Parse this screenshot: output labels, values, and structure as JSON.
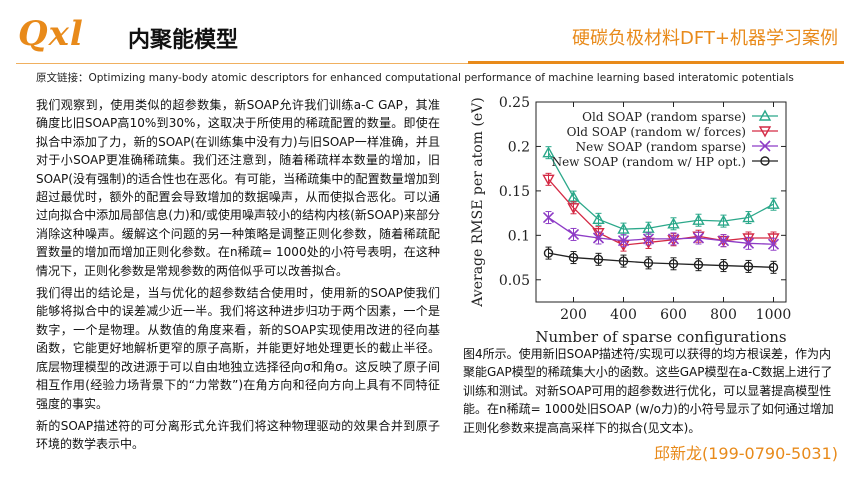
{
  "header": {
    "logo_text": "Qxl",
    "title": "内聚能模型",
    "brand": "硬碳负极材料DFT+机器学习案例",
    "source": "原文链接：Optimizing many-body atomic descriptors for enhanced computational performance of machine learning based interatomic potentials"
  },
  "body": {
    "p1": "我们观察到，使用类似的超参数集，新SOAP允许我们训练a-C GAP，其准确度比旧SOAP高10%到30%，这取决于所使用的稀疏配置的数量。即使在拟合中添加了力，新的SOAP(在训练集中没有力)与旧SOAP一样准确，并且对于小SOAP更准确稀疏集。我们还注意到，随着稀疏样本数量的增加，旧SOAP(没有强制)的适合性也在恶化。有可能，当稀疏集中的配置数量增加到超过最优时，额外的配置会导致增加的数据噪声，从而使拟合恶化。可以通过向拟合中添加局部信息(力)和/或使用噪声较小的结构内核(新SOAP)来部分消除这种噪声。缓解这个问题的另一种策略是调整正则化参数，随着稀疏配置数量的增加而增加正则化参数。在n稀疏= 1000处的小符号表明，在这种情况下，正则化参数是常规参数的两倍似乎可以改善拟合。",
    "p2": "我们得出的结论是，当与优化的超参数结合使用时，使用新的SOAP使我们能够将拟合中的误差减少近一半。我们将这种进步归功于两个因素，一个是数字，一个是物理。从数值的角度来看，新的SOAP实现使用改进的径向基函数，它能更好地解析更窄的原子高斯，并能更好地处理更长的截止半径。底层物理模型的改进源于可以自由地独立选择径向σ和角σ。这反映了原子间相互作用(经验力场背景下的“力常数”)在角方向和径向方向上具有不同特征强度的事实。",
    "p3": "新的SOAP描述符的可分离形式允许我们将这种物理驱动的效果合并到原子环境的数学表示中。"
  },
  "caption": "图4所示。使用新旧SOAP描述符/实现可以获得的均方根误差，作为内聚能GAP模型的稀疏集大小的函数。这些GAP模型在a-C数据上进行了训练和测试。对新SOAP可用的超参数进行优化，可以显著提高模型性能。在n稀疏= 1000处旧SOAP (w/o力)的小符号显示了如何通过增加正则化参数来提高高采样下的拟合(见文本)。",
  "contact": "邱新龙(199-0790-5031)",
  "chart_data": {
    "type": "line",
    "xlabel": "Number of sparse configurations",
    "ylabel": "Average RMSE per atom (eV)",
    "xlim": [
      50,
      1050
    ],
    "ylim": [
      0.025,
      0.25
    ],
    "xticks": [
      200,
      400,
      600,
      800,
      1000
    ],
    "yticks": [
      0.05,
      0.1,
      0.15,
      0.2,
      0.25
    ],
    "xtick_labels": [
      "200",
      "400",
      "600",
      "800",
      "1000"
    ],
    "ytick_labels": [
      "0.05",
      "0.1",
      "0.15",
      "0.2",
      "0.25"
    ],
    "legend_position": "top-right",
    "x": [
      100,
      200,
      300,
      400,
      500,
      600,
      700,
      800,
      900,
      1000
    ],
    "series": [
      {
        "name": "Old SOAP (random sparse)",
        "color": "#2ba88a",
        "marker": "triangle",
        "values": [
          0.193,
          0.143,
          0.118,
          0.107,
          0.108,
          0.113,
          0.117,
          0.116,
          0.12,
          0.135
        ]
      },
      {
        "name": "Old SOAP (random w/ forces)",
        "color": "#d42a45",
        "marker": "triangle-down",
        "values": [
          0.163,
          0.131,
          0.103,
          0.089,
          0.092,
          0.095,
          0.099,
          0.094,
          0.097,
          0.097
        ]
      },
      {
        "name": "New SOAP (random sparse)",
        "color": "#8e3cc6",
        "marker": "x",
        "values": [
          0.12,
          0.101,
          0.097,
          0.094,
          0.096,
          0.096,
          0.097,
          0.094,
          0.091,
          0.09
        ]
      },
      {
        "name": "New SOAP (random w/ HP opt.)",
        "color": "#222222",
        "marker": "circle",
        "values": [
          0.08,
          0.075,
          0.073,
          0.071,
          0.069,
          0.068,
          0.067,
          0.066,
          0.065,
          0.064
        ]
      }
    ]
  }
}
